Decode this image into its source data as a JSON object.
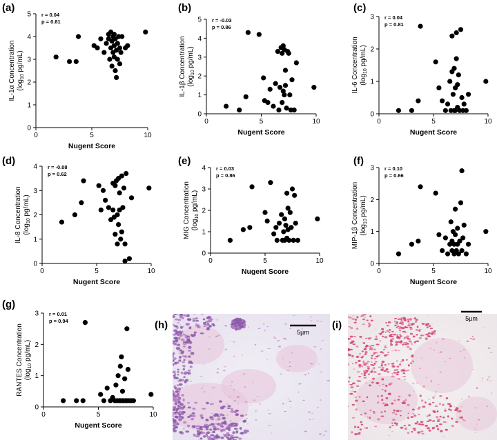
{
  "figure": {
    "panels": [
      "(a)",
      "(b)",
      "(c)",
      "(d)",
      "(e)",
      "(f)",
      "(g)",
      "(h)",
      "(i)"
    ]
  },
  "chart_data": [
    {
      "id": "a",
      "label": "(a)",
      "type": "scatter",
      "ylabel_main": "IL-1α Concentration",
      "ylabel_unit_pre": "(log",
      "ylabel_unit_sub": "10",
      "ylabel_unit_post": " pg/mL)",
      "xlabel": "Nugent Score",
      "stat_r": "r = 0.04",
      "stat_p": "p = 0.81",
      "xlim": [
        0,
        10
      ],
      "ylim": [
        0,
        5
      ],
      "xticks": [
        "0",
        "5",
        "10"
      ],
      "yticks": [
        "0",
        "1",
        "2",
        "3",
        "4",
        "5"
      ],
      "x": [
        1.8,
        3.0,
        3.6,
        3.8,
        5.2,
        5.5,
        5.8,
        6.1,
        6.3,
        6.5,
        6.5,
        6.6,
        6.7,
        6.7,
        6.8,
        6.8,
        6.9,
        6.9,
        7.0,
        7.0,
        7.0,
        7.1,
        7.1,
        7.2,
        7.2,
        7.3,
        7.3,
        7.4,
        7.5,
        7.5,
        7.6,
        7.7,
        8.0,
        8.2,
        9.8
      ],
      "y": [
        3.1,
        2.9,
        2.9,
        4.0,
        3.6,
        3.5,
        3.9,
        3.3,
        3.7,
        3.9,
        4.1,
        3.0,
        4.2,
        3.5,
        2.7,
        3.8,
        3.3,
        4.0,
        3.6,
        3.1,
        4.1,
        2.5,
        3.9,
        3.4,
        2.2,
        3.0,
        3.7,
        4.0,
        3.5,
        2.8,
        3.3,
        4.0,
        3.5,
        3.6,
        4.2
      ]
    },
    {
      "id": "b",
      "label": "(b)",
      "type": "scatter",
      "ylabel_main": "IL-1β Concentration",
      "ylabel_unit_pre": "(log",
      "ylabel_unit_sub": "10",
      "ylabel_unit_post": " pg/mL)",
      "xlabel": "Nugent Score",
      "stat_r": "r = -0.03",
      "stat_p": "p = 0.86",
      "xlim": [
        0,
        10
      ],
      "ylim": [
        0,
        5
      ],
      "xticks": [
        "0",
        "5",
        "10"
      ],
      "yticks": [
        "0",
        "1",
        "2",
        "3",
        "4",
        "5"
      ],
      "x": [
        1.8,
        3.0,
        3.6,
        3.8,
        4.8,
        5.2,
        5.3,
        5.6,
        5.8,
        6.1,
        6.3,
        6.5,
        6.6,
        6.7,
        6.8,
        6.9,
        6.9,
        7.0,
        7.0,
        7.1,
        7.1,
        7.2,
        7.2,
        7.3,
        7.4,
        7.5,
        7.6,
        7.7,
        7.8,
        8.0,
        8.2,
        9.8
      ],
      "y": [
        0.4,
        0.2,
        0.9,
        4.3,
        4.2,
        1.9,
        0.7,
        0.6,
        1.3,
        0.4,
        1.6,
        3.3,
        0.2,
        1.4,
        3.5,
        3.2,
        0.6,
        1.2,
        3.6,
        1.0,
        3.4,
        2.3,
        1.5,
        0.3,
        3.3,
        3.2,
        1.0,
        0.2,
        1.8,
        0.2,
        2.7,
        1.4
      ]
    },
    {
      "id": "c",
      "label": "(c)",
      "type": "scatter",
      "ylabel_main": "IL-6 Concentration",
      "ylabel_unit_pre": "(log",
      "ylabel_unit_sub": "10",
      "ylabel_unit_post": " pg/mL)",
      "xlabel": "Nugent Score",
      "stat_r": "r = 0.04",
      "stat_p": "p = 0.81",
      "xlim": [
        0,
        10
      ],
      "ylim": [
        0,
        3
      ],
      "xticks": [
        "0",
        "5",
        "10"
      ],
      "yticks": [
        "0",
        "1",
        "2",
        "3"
      ],
      "x": [
        1.8,
        3.0,
        3.6,
        3.8,
        5.2,
        5.5,
        5.8,
        6.1,
        6.3,
        6.5,
        6.6,
        6.7,
        6.7,
        6.8,
        6.9,
        6.9,
        7.0,
        7.0,
        7.1,
        7.1,
        7.2,
        7.2,
        7.3,
        7.4,
        7.5,
        7.6,
        7.7,
        7.8,
        8.0,
        8.2,
        9.8
      ],
      "y": [
        0.1,
        0.1,
        0.4,
        2.7,
        1.6,
        0.8,
        0.4,
        0.1,
        0.3,
        1.0,
        0.1,
        2.4,
        1.3,
        0.6,
        0.1,
        1.4,
        0.8,
        0.1,
        1.7,
        2.5,
        0.2,
        0.9,
        1.2,
        0.1,
        2.6,
        0.5,
        0.1,
        0.3,
        0.1,
        0.6,
        1.0
      ]
    },
    {
      "id": "d",
      "label": "(d)",
      "type": "scatter",
      "ylabel_main": "IL-8 Concentration",
      "ylabel_unit_pre": "(log",
      "ylabel_unit_sub": "10",
      "ylabel_unit_post": " pg/mL)",
      "xlabel": "Nugent Score",
      "stat_r": "r = -0.08",
      "stat_p": "p = 0.62",
      "xlim": [
        0,
        10
      ],
      "ylim": [
        0,
        4
      ],
      "xticks": [
        "0",
        "5",
        "10"
      ],
      "yticks": [
        "0",
        "1",
        "2",
        "3",
        "4"
      ],
      "x": [
        1.8,
        3.0,
        3.6,
        3.8,
        5.2,
        5.4,
        5.6,
        5.8,
        6.1,
        6.3,
        6.5,
        6.5,
        6.6,
        6.7,
        6.7,
        6.8,
        6.9,
        6.9,
        7.0,
        7.0,
        7.1,
        7.1,
        7.2,
        7.3,
        7.3,
        7.4,
        7.5,
        7.6,
        7.6,
        7.7,
        8.0,
        8.2,
        9.8
      ],
      "y": [
        1.7,
        2.0,
        2.5,
        3.4,
        3.2,
        2.2,
        3.0,
        2.6,
        2.3,
        1.8,
        2.2,
        3.3,
        1.9,
        3.2,
        1.2,
        3.4,
        2.0,
        0.8,
        3.5,
        1.6,
        2.2,
        2.9,
        1.0,
        3.6,
        1.3,
        2.3,
        3.1,
        0.8,
        0.1,
        3.7,
        0.2,
        2.7,
        3.1
      ]
    },
    {
      "id": "e",
      "label": "(e)",
      "type": "scatter",
      "ylabel_main": "MIG Concentration",
      "ylabel_unit_pre": "(log",
      "ylabel_unit_sub": "10",
      "ylabel_unit_post": " pg/mL)",
      "xlabel": "Nugent Score",
      "stat_r": "r = 0.03",
      "stat_p": "p = 0.86",
      "xlim": [
        0,
        10
      ],
      "ylim": [
        0,
        4
      ],
      "xticks": [
        "0",
        "5",
        "10"
      ],
      "yticks": [
        "0",
        "1",
        "2",
        "3",
        "4"
      ],
      "x": [
        1.8,
        3.0,
        3.6,
        3.8,
        5.0,
        5.2,
        5.5,
        5.8,
        6.0,
        6.1,
        6.3,
        6.5,
        6.6,
        6.7,
        6.8,
        6.8,
        6.9,
        7.0,
        7.0,
        7.1,
        7.1,
        7.2,
        7.3,
        7.4,
        7.5,
        7.6,
        7.7,
        7.8,
        8.0,
        9.8
      ],
      "y": [
        0.6,
        1.1,
        1.2,
        3.1,
        1.9,
        1.5,
        3.3,
        0.9,
        1.2,
        0.6,
        1.4,
        1.8,
        0.6,
        1.0,
        1.6,
        0.6,
        1.3,
        0.7,
        2.8,
        1.1,
        2.1,
        0.6,
        1.9,
        1.2,
        3.0,
        0.6,
        2.7,
        1.4,
        0.6,
        1.6
      ]
    },
    {
      "id": "f",
      "label": "(f)",
      "type": "scatter",
      "ylabel_main": "MIP-1β Concentration",
      "ylabel_unit_pre": "(log",
      "ylabel_unit_sub": "10",
      "ylabel_unit_post": " pg/mL)",
      "xlabel": "Nugent Score",
      "stat_r": "r = 0.10",
      "stat_p": "p = 0.66",
      "xlim": [
        0,
        10
      ],
      "ylim": [
        0,
        3
      ],
      "xticks": [
        "0",
        "5",
        "10"
      ],
      "yticks": [
        "0",
        "1",
        "2",
        "3"
      ],
      "x": [
        1.8,
        3.0,
        3.6,
        3.8,
        5.2,
        5.5,
        5.8,
        6.1,
        6.3,
        6.5,
        6.6,
        6.7,
        6.7,
        6.8,
        6.9,
        6.9,
        7.0,
        7.0,
        7.1,
        7.2,
        7.2,
        7.3,
        7.4,
        7.5,
        7.6,
        7.6,
        7.7,
        7.8,
        8.0,
        8.2,
        9.8
      ],
      "y": [
        0.3,
        0.6,
        0.7,
        2.4,
        2.2,
        0.9,
        0.4,
        0.8,
        0.3,
        0.6,
        1.3,
        0.4,
        0.7,
        1.0,
        0.3,
        0.6,
        1.7,
        0.9,
        0.4,
        0.6,
        1.1,
        0.3,
        0.7,
        1.9,
        2.9,
        0.4,
        0.8,
        1.2,
        0.3,
        0.6,
        1.0
      ]
    },
    {
      "id": "g",
      "label": "(g)",
      "type": "scatter",
      "ylabel_main": "RANTES Concentration",
      "ylabel_unit_pre": "(log",
      "ylabel_unit_sub": "10",
      "ylabel_unit_post": " pg/mL)",
      "xlabel": "Nugent Score",
      "stat_r": "r = 0.01",
      "stat_p": "p = 0.94",
      "xlim": [
        0,
        10
      ],
      "ylim": [
        0,
        3
      ],
      "xticks": [
        "0",
        "5",
        "10"
      ],
      "yticks": [
        "0",
        "1",
        "2",
        "3"
      ],
      "x": [
        1.8,
        3.0,
        3.6,
        3.8,
        5.2,
        5.5,
        5.8,
        6.1,
        6.3,
        6.5,
        6.6,
        6.7,
        6.8,
        6.9,
        7.0,
        7.0,
        7.1,
        7.2,
        7.2,
        7.3,
        7.4,
        7.5,
        7.6,
        7.6,
        7.7,
        7.8,
        8.0,
        8.2,
        9.8
      ],
      "y": [
        0.2,
        0.2,
        0.2,
        2.7,
        0.4,
        0.2,
        0.6,
        0.2,
        0.3,
        0.2,
        0.7,
        0.2,
        1.0,
        0.2,
        1.3,
        0.2,
        1.6,
        0.2,
        0.5,
        0.2,
        0.9,
        0.2,
        2.5,
        0.2,
        1.2,
        0.2,
        0.2,
        0.2,
        0.4
      ]
    }
  ],
  "micrographs": [
    {
      "id": "h",
      "label": "(h)",
      "scale_bar": "5µm",
      "stain": "crystal-violet"
    },
    {
      "id": "i",
      "label": "(i)",
      "scale_bar": "5µm",
      "stain": "safranin"
    }
  ]
}
